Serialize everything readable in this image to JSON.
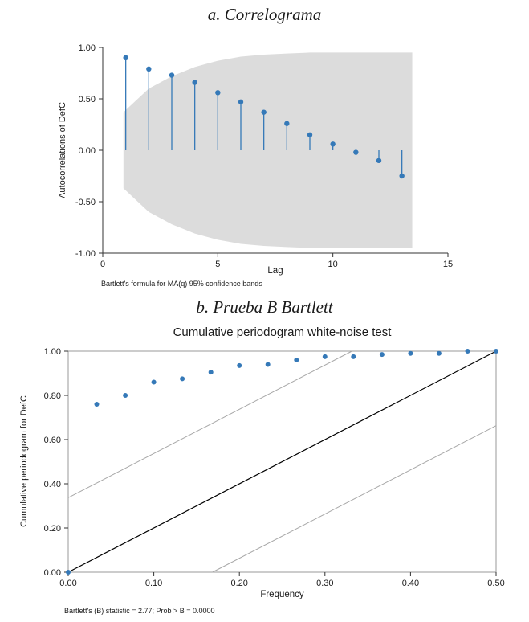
{
  "sections": {
    "a": {
      "heading": "a. Correlograma"
    },
    "b": {
      "heading": "b. Prueba B Bartlett"
    }
  },
  "chart_data": [
    {
      "type": "stem",
      "name": "correlogram",
      "title": "",
      "xlabel": "Lag",
      "ylabel": "Autocorrelations of DefC",
      "caption": "Bartlett's formula for MA(q) 95% confidence bands",
      "xlim": [
        0,
        15
      ],
      "ylim": [
        -1,
        1
      ],
      "xticks": [
        "0",
        "5",
        "10",
        "15"
      ],
      "yticks": [
        "-1.00",
        "-0.50",
        "0.00",
        "0.50",
        "1.00"
      ],
      "grid": false,
      "legend": "none",
      "lags": [
        1,
        2,
        3,
        4,
        5,
        6,
        7,
        8,
        9,
        10,
        11,
        12,
        13
      ],
      "acf": [
        0.9,
        0.79,
        0.73,
        0.66,
        0.56,
        0.47,
        0.37,
        0.26,
        0.15,
        0.06,
        -0.02,
        -0.1,
        -0.25
      ],
      "band_x": [
        0.9,
        2,
        3,
        4,
        5,
        6,
        7,
        8,
        9,
        10,
        11,
        12,
        13.45
      ],
      "band_upper": [
        0.37,
        0.6,
        0.72,
        0.81,
        0.87,
        0.91,
        0.93,
        0.94,
        0.95,
        0.95,
        0.95,
        0.95,
        0.95
      ],
      "band_color": "#dcdcdc",
      "marker_color": "#3579b8",
      "axis_color": "#333333"
    },
    {
      "type": "scatter",
      "name": "cumulative-periodogram",
      "title": "Cumulative periodogram white-noise test",
      "xlabel": "Frequency",
      "ylabel": "Cumulative periodogram for DefC",
      "caption": "Bartlett's (B) statistic = 2.77; Prob > B = 0.0000",
      "xlim": [
        0,
        0.5
      ],
      "ylim": [
        0,
        1
      ],
      "xticks": [
        "0.00",
        "0.10",
        "0.20",
        "0.30",
        "0.40",
        "0.50"
      ],
      "yticks": [
        "0.00",
        "0.20",
        "0.40",
        "0.60",
        "0.80",
        "1.00"
      ],
      "grid": false,
      "legend": "none",
      "x": [
        0.0,
        0.0333,
        0.0667,
        0.1,
        0.1333,
        0.1667,
        0.2,
        0.2333,
        0.2667,
        0.3,
        0.3333,
        0.3667,
        0.4,
        0.4333,
        0.4667,
        0.5
      ],
      "y": [
        0.0,
        0.76,
        0.8,
        0.86,
        0.875,
        0.905,
        0.935,
        0.94,
        0.96,
        0.975,
        0.975,
        0.985,
        0.99,
        0.99,
        1.0,
        1.0
      ],
      "reference_line": {
        "from": [
          0,
          0
        ],
        "to": [
          0.5,
          1
        ],
        "color": "#000000"
      },
      "band_offset": 0.337,
      "band_line_color": "#a8a8a8",
      "marker_color": "#3579b8",
      "box_color": "#999999"
    }
  ]
}
